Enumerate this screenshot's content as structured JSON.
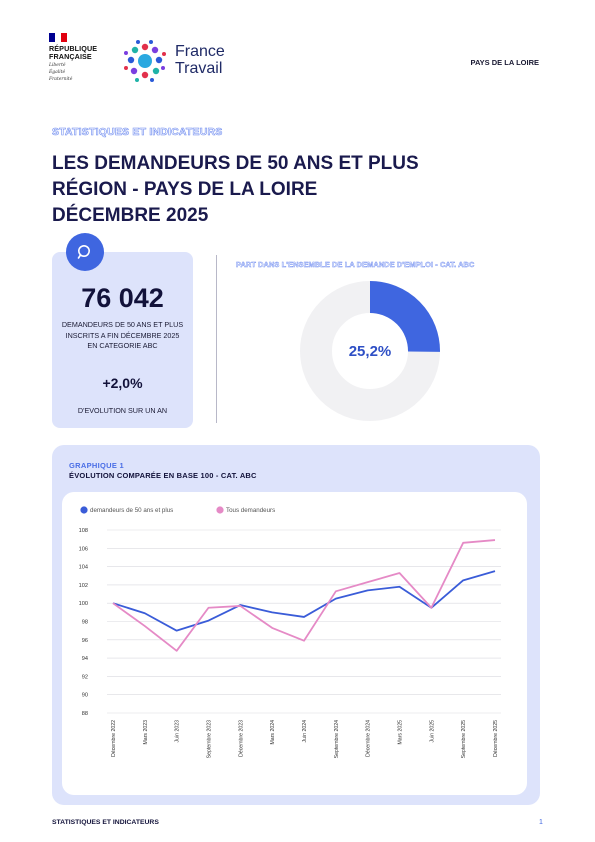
{
  "header": {
    "rf_lines": [
      "RÉPUBLIQUE",
      "FRANÇAISE"
    ],
    "rf_motto": [
      "Liberté",
      "Égalité",
      "Fraternité"
    ],
    "brand_line1": "France",
    "brand_line2": "Travail",
    "region_tag": "PAYS DE LA LOIRE"
  },
  "colors": {
    "accent_blue": "#3f66e0",
    "series_50plus": "#3a5cd8",
    "series_all": "#e58ac6",
    "panel_bg": "#dde3fb"
  },
  "title": {
    "kicker": "STATISTIQUES ET INDICATEURS",
    "line1": "LES DEMANDEURS DE 50 ANS ET PLUS",
    "line2": "RÉGION - PAYS DE LA LOIRE",
    "line3": "DÉCEMBRE 2025"
  },
  "kpi": {
    "icon": "search-icon",
    "value": "76 042",
    "description": "DEMANDEURS DE 50 ANS ET PLUS INSCRITS A FIN DÉCEMBRE 2025 EN CATEGORIE ABC",
    "evolution": "+2,0%",
    "evolution_label": "D'EVOLUTION SUR UN AN"
  },
  "share": {
    "title": "PART DANS L'ENSEMBLE DE LA DEMANDE D'EMPLOI - CAT. ABC",
    "value_label": "25,2%",
    "value": 25.2
  },
  "chart_section": {
    "kicker": "GRAPHIQUE 1",
    "title": "ÉVOLUTION COMPARÉE EN BASE 100 - CAT. ABC"
  },
  "chart_data": {
    "type": "line",
    "categories": [
      "Décembre 2022",
      "Mars 2023",
      "Juin 2023",
      "Septembre 2023",
      "Décembre 2023",
      "Mars 2024",
      "Juin 2024",
      "Septembre 2024",
      "Décembre 2024",
      "Mars 2025",
      "Juin 2025",
      "Septembre 2025",
      "Décembre 2025"
    ],
    "series": [
      {
        "name": "demandeurs de 50 ans et plus",
        "values": [
          100,
          98.9,
          97.0,
          98.1,
          99.8,
          99.0,
          98.5,
          100.5,
          101.4,
          101.8,
          99.5,
          102.5,
          103.5
        ]
      },
      {
        "name": "Tous demandeurs",
        "values": [
          100,
          97.5,
          94.8,
          99.5,
          99.7,
          97.3,
          95.9,
          101.3,
          102.3,
          103.3,
          99.5,
          106.6,
          106.9
        ]
      }
    ],
    "ylim": [
      88,
      108
    ],
    "yticks": [
      88,
      90,
      92,
      94,
      96,
      98,
      100,
      102,
      104,
      106,
      108
    ],
    "grid": true,
    "legend": "top-left"
  },
  "footer": {
    "left": "STATISTIQUES ET INDICATEURS",
    "page": "1"
  }
}
